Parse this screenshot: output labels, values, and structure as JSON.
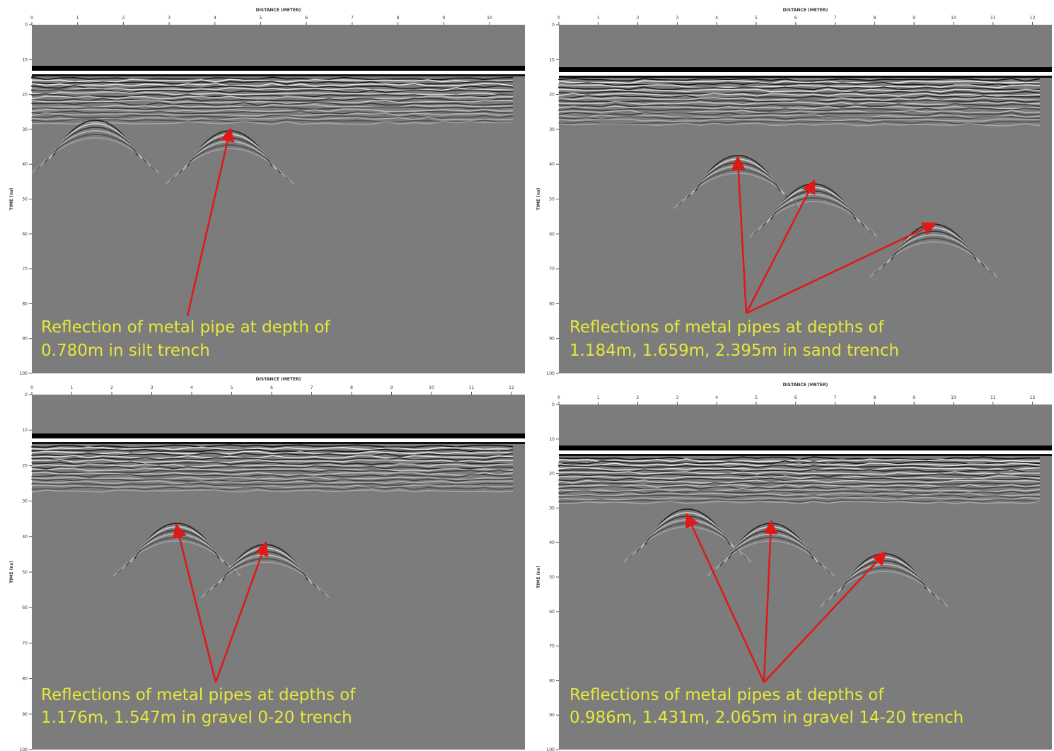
{
  "panels": [
    {
      "xlabel": "DISTANCE (METER)",
      "ylabel": "TIME (ns)",
      "xticks": [
        "0",
        "1",
        "2",
        "3",
        "4",
        "5",
        "6",
        "7",
        "8",
        "9",
        "10"
      ],
      "yticks": [
        "0",
        "10",
        "20",
        "30",
        "40",
        "50",
        "60",
        "70",
        "80",
        "90",
        "100"
      ],
      "caption": [
        "Reflection of metal pipe at depth of",
        "0.780m in silt trench"
      ]
    },
    {
      "xlabel": "DISTANCE (METER)",
      "ylabel": "TIME (ns)",
      "xticks": [
        "0",
        "1",
        "2",
        "3",
        "4",
        "5",
        "6",
        "7",
        "8",
        "9",
        "10",
        "11",
        "12"
      ],
      "yticks": [
        "0",
        "10",
        "20",
        "30",
        "40",
        "50",
        "60",
        "70",
        "80",
        "90",
        "100"
      ],
      "caption": [
        "Reflections of metal pipes at depths of",
        "1.184m, 1.659m, 2.395m in sand trench"
      ]
    },
    {
      "xlabel": "DISTANCE (METER)",
      "ylabel": "TIME (ns)",
      "xticks": [
        "0",
        "1",
        "2",
        "3",
        "4",
        "5",
        "6",
        "7",
        "8",
        "9",
        "10",
        "11",
        "12"
      ],
      "yticks": [
        "0",
        "10",
        "20",
        "30",
        "40",
        "50",
        "60",
        "70",
        "80",
        "90",
        "100"
      ],
      "caption": [
        "Reflections of metal pipes at depths of",
        "1.176m, 1.547m in gravel 0-20 trench"
      ]
    },
    {
      "xlabel": "DISTANCE (METER)",
      "ylabel": "TIME (ns)",
      "xticks": [
        "0",
        "1",
        "2",
        "3",
        "4",
        "5",
        "6",
        "7",
        "8",
        "9",
        "10",
        "11",
        "12"
      ],
      "yticks": [
        "0",
        "10",
        "20",
        "30",
        "40",
        "50",
        "60",
        "70",
        "80",
        "90",
        "100"
      ],
      "caption": [
        "Reflections of metal pipes at depths of",
        "0.986m, 1.431m, 2.065m in gravel 14-20 trench"
      ]
    }
  ]
}
